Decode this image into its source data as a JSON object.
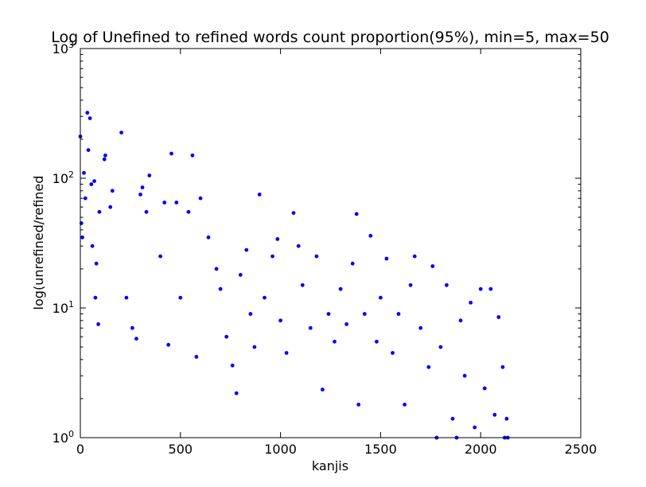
{
  "chart_data": {
    "type": "scatter",
    "title": "Log of Unefined to refined words count proportion(95%), min=5, max=50",
    "xlabel": "kanjis",
    "ylabel": "log(unrefined/refined",
    "xlim": [
      0,
      2500
    ],
    "ylim": [
      1,
      1000
    ],
    "yscale": "log",
    "grid": false,
    "x_ticks": [
      0,
      500,
      1000,
      1500,
      2000,
      2500
    ],
    "x_tick_labels": [
      "0",
      "500",
      "1000",
      "1500",
      "2000",
      "2500"
    ],
    "y_ticks": [
      1,
      10,
      100,
      1000
    ],
    "y_tick_labels": [
      {
        "base": "10",
        "exp": "0"
      },
      {
        "base": "10",
        "exp": "1"
      },
      {
        "base": "10",
        "exp": "2"
      },
      {
        "base": "10",
        "exp": "3"
      }
    ],
    "marker_color": "#0000ff",
    "series": [
      {
        "values": [
          {
            "x": 0,
            "y": 210
          },
          {
            "x": 5,
            "y": 45
          },
          {
            "x": 10,
            "y": 35
          },
          {
            "x": 18,
            "y": 110
          },
          {
            "x": 25,
            "y": 70
          },
          {
            "x": 35,
            "y": 320
          },
          {
            "x": 40,
            "y": 165
          },
          {
            "x": 48,
            "y": 290
          },
          {
            "x": 55,
            "y": 90
          },
          {
            "x": 60,
            "y": 30
          },
          {
            "x": 70,
            "y": 95
          },
          {
            "x": 75,
            "y": 12
          },
          {
            "x": 80,
            "y": 22
          },
          {
            "x": 90,
            "y": 7.5
          },
          {
            "x": 95,
            "y": 55
          },
          {
            "x": 120,
            "y": 140
          },
          {
            "x": 125,
            "y": 150
          },
          {
            "x": 150,
            "y": 60
          },
          {
            "x": 160,
            "y": 80
          },
          {
            "x": 205,
            "y": 225
          },
          {
            "x": 230,
            "y": 12
          },
          {
            "x": 260,
            "y": 7
          },
          {
            "x": 280,
            "y": 5.8
          },
          {
            "x": 300,
            "y": 75
          },
          {
            "x": 310,
            "y": 85
          },
          {
            "x": 330,
            "y": 55
          },
          {
            "x": 345,
            "y": 105
          },
          {
            "x": 400,
            "y": 25
          },
          {
            "x": 420,
            "y": 65
          },
          {
            "x": 440,
            "y": 5.2
          },
          {
            "x": 455,
            "y": 155
          },
          {
            "x": 480,
            "y": 65
          },
          {
            "x": 500,
            "y": 12
          },
          {
            "x": 540,
            "y": 55
          },
          {
            "x": 560,
            "y": 150
          },
          {
            "x": 580,
            "y": 4.2
          },
          {
            "x": 600,
            "y": 70
          },
          {
            "x": 640,
            "y": 35
          },
          {
            "x": 680,
            "y": 20
          },
          {
            "x": 700,
            "y": 14
          },
          {
            "x": 730,
            "y": 6
          },
          {
            "x": 760,
            "y": 3.6
          },
          {
            "x": 780,
            "y": 2.2
          },
          {
            "x": 800,
            "y": 18
          },
          {
            "x": 830,
            "y": 28
          },
          {
            "x": 850,
            "y": 9
          },
          {
            "x": 870,
            "y": 5
          },
          {
            "x": 895,
            "y": 75
          },
          {
            "x": 920,
            "y": 12
          },
          {
            "x": 960,
            "y": 25
          },
          {
            "x": 985,
            "y": 34
          },
          {
            "x": 1000,
            "y": 8
          },
          {
            "x": 1030,
            "y": 4.5
          },
          {
            "x": 1065,
            "y": 54
          },
          {
            "x": 1090,
            "y": 30
          },
          {
            "x": 1110,
            "y": 15
          },
          {
            "x": 1150,
            "y": 7
          },
          {
            "x": 1180,
            "y": 25
          },
          {
            "x": 1210,
            "y": 2.35
          },
          {
            "x": 1240,
            "y": 9
          },
          {
            "x": 1270,
            "y": 5.5
          },
          {
            "x": 1300,
            "y": 14
          },
          {
            "x": 1330,
            "y": 7.5
          },
          {
            "x": 1360,
            "y": 22
          },
          {
            "x": 1380,
            "y": 53
          },
          {
            "x": 1390,
            "y": 1.8
          },
          {
            "x": 1420,
            "y": 9
          },
          {
            "x": 1450,
            "y": 36
          },
          {
            "x": 1480,
            "y": 5.5
          },
          {
            "x": 1500,
            "y": 12
          },
          {
            "x": 1530,
            "y": 24
          },
          {
            "x": 1560,
            "y": 4.5
          },
          {
            "x": 1590,
            "y": 9
          },
          {
            "x": 1620,
            "y": 1.8
          },
          {
            "x": 1650,
            "y": 15
          },
          {
            "x": 1670,
            "y": 25
          },
          {
            "x": 1700,
            "y": 7
          },
          {
            "x": 1740,
            "y": 3.5
          },
          {
            "x": 1760,
            "y": 21
          },
          {
            "x": 1780,
            "y": 1.0
          },
          {
            "x": 1800,
            "y": 5
          },
          {
            "x": 1830,
            "y": 15
          },
          {
            "x": 1860,
            "y": 1.4
          },
          {
            "x": 1880,
            "y": 1.0
          },
          {
            "x": 1900,
            "y": 8
          },
          {
            "x": 1920,
            "y": 3
          },
          {
            "x": 1950,
            "y": 11
          },
          {
            "x": 1970,
            "y": 1.2
          },
          {
            "x": 2000,
            "y": 14
          },
          {
            "x": 2020,
            "y": 2.4
          },
          {
            "x": 2050,
            "y": 14
          },
          {
            "x": 2070,
            "y": 1.5
          },
          {
            "x": 2090,
            "y": 8.5
          },
          {
            "x": 2110,
            "y": 3.5
          },
          {
            "x": 2120,
            "y": 1.0
          },
          {
            "x": 2130,
            "y": 1.4
          },
          {
            "x": 2135,
            "y": 1.0
          }
        ]
      }
    ]
  }
}
